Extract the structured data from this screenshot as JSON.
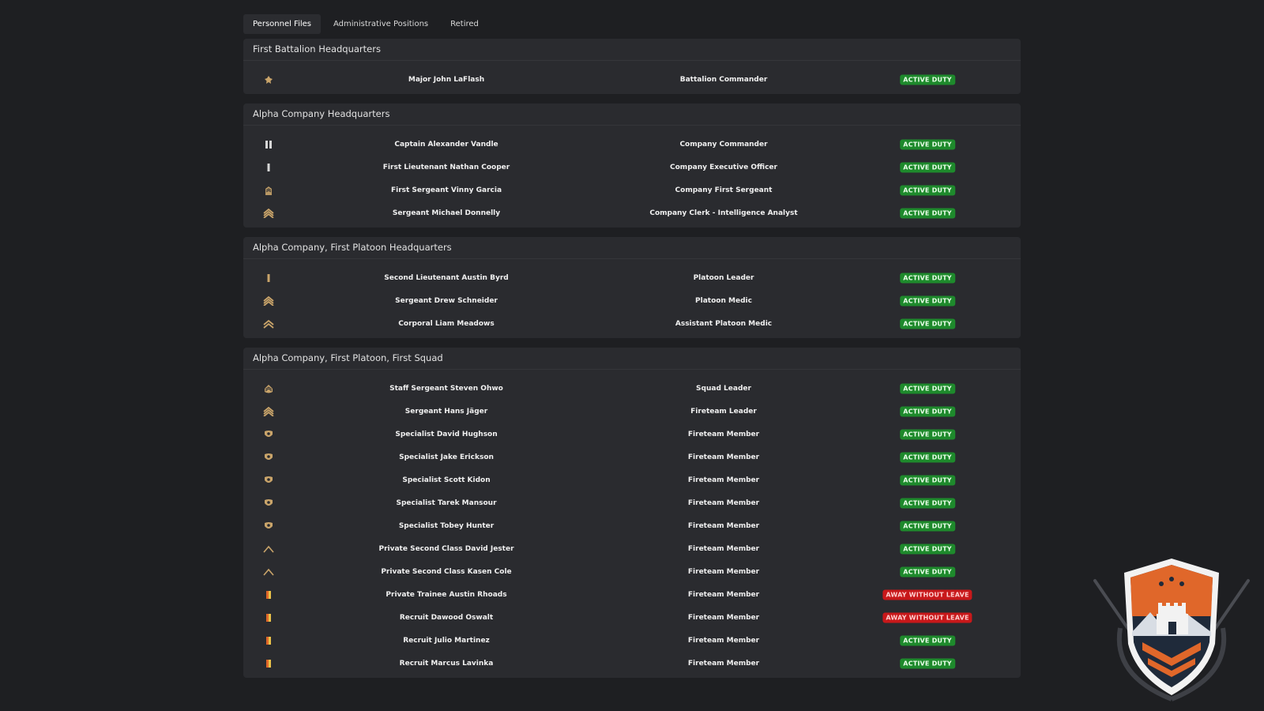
{
  "tabs": [
    {
      "label": "Personnel Files",
      "active": true
    },
    {
      "label": "Administrative Positions",
      "active": false
    },
    {
      "label": "Retired",
      "active": false
    }
  ],
  "sections": [
    {
      "title": "First Battalion Headquarters",
      "rows": [
        {
          "rank_icon": "major-insignia-icon",
          "name": "Major John LaFlash",
          "position": "Battalion Commander",
          "status": "ACTIVE DUTY",
          "status_type": "active"
        }
      ]
    },
    {
      "title": "Alpha Company Headquarters",
      "rows": [
        {
          "rank_icon": "captain-insignia-icon",
          "name": "Captain Alexander Vandle",
          "position": "Company Commander",
          "status": "ACTIVE DUTY",
          "status_type": "active"
        },
        {
          "rank_icon": "first-lieutenant-insignia-icon",
          "name": "First Lieutenant Nathan Cooper",
          "position": "Company Executive Officer",
          "status": "ACTIVE DUTY",
          "status_type": "active"
        },
        {
          "rank_icon": "first-sergeant-insignia-icon",
          "name": "First Sergeant Vinny Garcia",
          "position": "Company First Sergeant",
          "status": "ACTIVE DUTY",
          "status_type": "active"
        },
        {
          "rank_icon": "sergeant-insignia-icon",
          "name": "Sergeant Michael Donnelly",
          "position": "Company Clerk - Intelligence Analyst",
          "status": "ACTIVE DUTY",
          "status_type": "active"
        }
      ]
    },
    {
      "title": "Alpha Company, First Platoon Headquarters",
      "rows": [
        {
          "rank_icon": "second-lieutenant-insignia-icon",
          "name": "Second Lieutenant Austin Byrd",
          "position": "Platoon Leader",
          "status": "ACTIVE DUTY",
          "status_type": "active"
        },
        {
          "rank_icon": "sergeant-insignia-icon",
          "name": "Sergeant Drew Schneider",
          "position": "Platoon Medic",
          "status": "ACTIVE DUTY",
          "status_type": "active"
        },
        {
          "rank_icon": "corporal-insignia-icon",
          "name": "Corporal Liam Meadows",
          "position": "Assistant Platoon Medic",
          "status": "ACTIVE DUTY",
          "status_type": "active"
        }
      ]
    },
    {
      "title": "Alpha Company, First Platoon, First Squad",
      "rows": [
        {
          "rank_icon": "staff-sergeant-insignia-icon",
          "name": "Staff Sergeant Steven Ohwo",
          "position": "Squad Leader",
          "status": "ACTIVE DUTY",
          "status_type": "active"
        },
        {
          "rank_icon": "sergeant-insignia-icon",
          "name": "Sergeant Hans Jäger",
          "position": "Fireteam Leader",
          "status": "ACTIVE DUTY",
          "status_type": "active"
        },
        {
          "rank_icon": "specialist-insignia-icon",
          "name": "Specialist David Hughson",
          "position": "Fireteam Member",
          "status": "ACTIVE DUTY",
          "status_type": "active"
        },
        {
          "rank_icon": "specialist-insignia-icon",
          "name": "Specialist Jake Erickson",
          "position": "Fireteam Member",
          "status": "ACTIVE DUTY",
          "status_type": "active"
        },
        {
          "rank_icon": "specialist-insignia-icon",
          "name": "Specialist Scott Kidon",
          "position": "Fireteam Member",
          "status": "ACTIVE DUTY",
          "status_type": "active"
        },
        {
          "rank_icon": "specialist-insignia-icon",
          "name": "Specialist Tarek Mansour",
          "position": "Fireteam Member",
          "status": "ACTIVE DUTY",
          "status_type": "active"
        },
        {
          "rank_icon": "specialist-insignia-icon",
          "name": "Specialist Tobey Hunter",
          "position": "Fireteam Member",
          "status": "ACTIVE DUTY",
          "status_type": "active"
        },
        {
          "rank_icon": "private-second-class-insignia-icon",
          "name": "Private Second Class David Jester",
          "position": "Fireteam Member",
          "status": "ACTIVE DUTY",
          "status_type": "active"
        },
        {
          "rank_icon": "private-second-class-insignia-icon",
          "name": "Private Second Class Kasen Cole",
          "position": "Fireteam Member",
          "status": "ACTIVE DUTY",
          "status_type": "active"
        },
        {
          "rank_icon": "trainee-insignia-icon",
          "name": "Private Trainee Austin Rhoads",
          "position": "Fireteam Member",
          "status": "AWAY WITHOUT LEAVE",
          "status_type": "awol"
        },
        {
          "rank_icon": "recruit-insignia-icon",
          "name": "Recruit Dawood Oswalt",
          "position": "Fireteam Member",
          "status": "AWAY WITHOUT LEAVE",
          "status_type": "awol"
        },
        {
          "rank_icon": "recruit-insignia-icon",
          "name": "Recruit Julio Martinez",
          "position": "Fireteam Member",
          "status": "ACTIVE DUTY",
          "status_type": "active"
        },
        {
          "rank_icon": "recruit-insignia-icon",
          "name": "Recruit Marcus Lavinka",
          "position": "Fireteam Member",
          "status": "ACTIVE DUTY",
          "status_type": "active"
        }
      ]
    }
  ],
  "colors": {
    "background": "#1e1f22",
    "panel": "#2a2b2f",
    "active_badge": "#1e8a2c",
    "awol_badge": "#c8181a",
    "insignia_gold": "#c9a46a",
    "emblem_orange": "#e0672a"
  },
  "emblem": {
    "icon": "unit-crest-icon"
  }
}
